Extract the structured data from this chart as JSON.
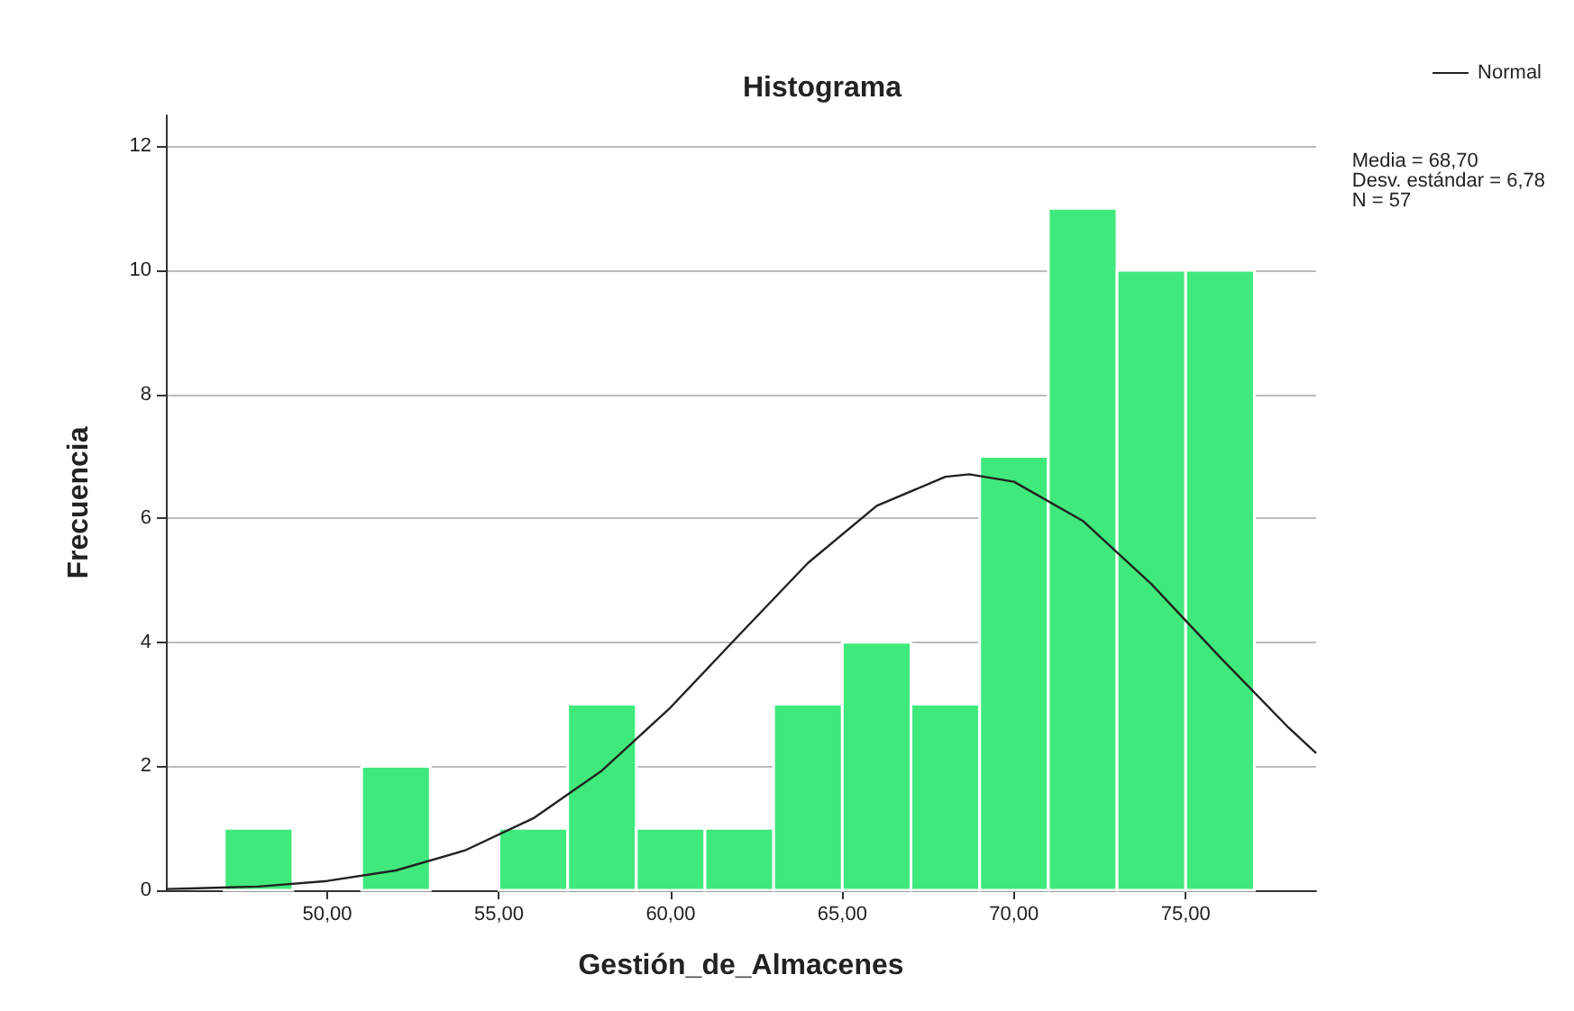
{
  "chart_data": {
    "type": "histogram",
    "title": "Histograma",
    "xlabel": "Gestión_de_Almacenes",
    "ylabel": "Frecuencia",
    "bins": [
      47,
      49,
      51,
      53,
      55,
      57,
      59,
      61,
      63,
      65,
      67,
      69,
      71,
      73,
      75,
      77
    ],
    "values": [
      1,
      0,
      2,
      0,
      1,
      3,
      1,
      1,
      3,
      4,
      3,
      7,
      11,
      10,
      10
    ],
    "color": "#40e97b",
    "series": [
      {
        "name": "Normal",
        "type": "line",
        "color": "#222222",
        "x": [
          45.3,
          46,
          48,
          50,
          52,
          54,
          56,
          58,
          60,
          62,
          64,
          66,
          68,
          68.7,
          70,
          72,
          74,
          76,
          78,
          78.8
        ],
        "values": [
          0.02,
          0.03,
          0.06,
          0.15,
          0.32,
          0.64,
          1.16,
          1.93,
          2.95,
          4.12,
          5.28,
          6.2,
          6.67,
          6.71,
          6.59,
          5.96,
          4.94,
          3.76,
          2.62,
          2.21
        ]
      }
    ],
    "xlim": [
      45.3,
      78.8
    ],
    "xticks": [
      {
        "value": 50,
        "label": "50,00"
      },
      {
        "value": 55,
        "label": "55,00"
      },
      {
        "value": 60,
        "label": "60,00"
      },
      {
        "value": 65,
        "label": "65,00"
      },
      {
        "value": 70,
        "label": "70,00"
      },
      {
        "value": 75,
        "label": "75,00"
      }
    ],
    "ylim": [
      0,
      12.5
    ],
    "yticks": [
      0,
      2,
      4,
      6,
      8,
      10,
      12
    ],
    "grid": "y",
    "legend": "top right",
    "marker": "none",
    "annotations": [
      "Media = 68,70",
      "Desv. estándar = 6,78",
      "N = 57"
    ]
  }
}
